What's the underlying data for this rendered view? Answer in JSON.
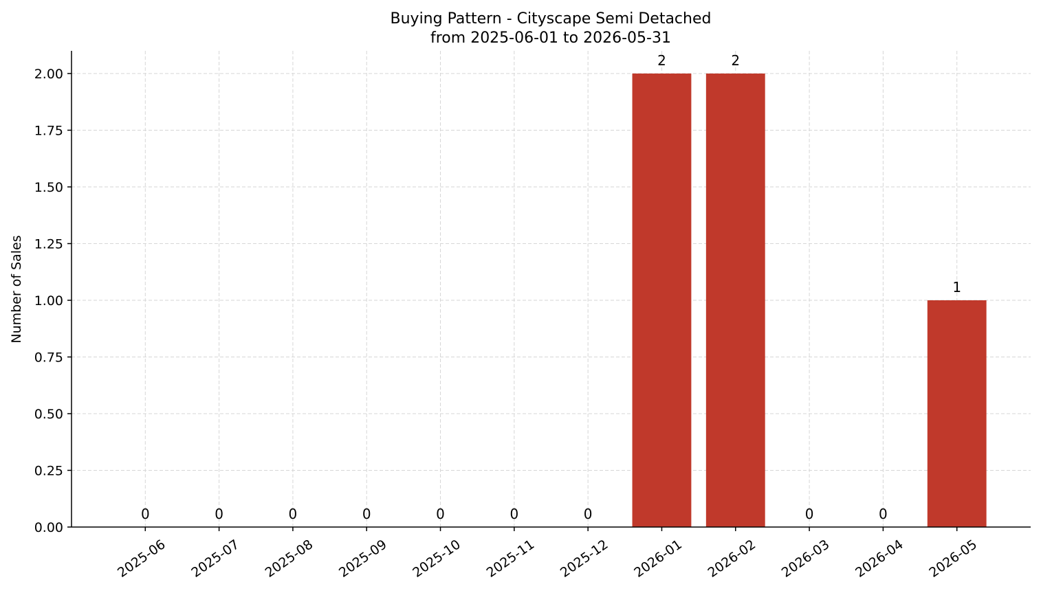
{
  "chart_data": {
    "type": "bar",
    "title": "Buying Pattern - Cityscape Semi Detached",
    "subtitle": "from 2025-06-01 to 2026-05-31",
    "y_label": "Number of Sales",
    "categories": [
      "2025-06",
      "2025-07",
      "2025-08",
      "2025-09",
      "2025-10",
      "2025-11",
      "2025-12",
      "2026-01",
      "2026-02",
      "2026-03",
      "2026-04",
      "2026-05"
    ],
    "values": [
      0,
      0,
      0,
      0,
      0,
      0,
      0,
      2,
      2,
      0,
      0,
      1
    ],
    "color": "#c0392b",
    "ylim": [
      0,
      2.1
    ],
    "yticks": [
      {
        "value": 0,
        "label": "0.00"
      },
      {
        "value": 0.25,
        "label": "0.25"
      },
      {
        "value": 0.5,
        "label": "0.50"
      },
      {
        "value": 0.75,
        "label": "0.75"
      },
      {
        "value": 1,
        "label": "1.00"
      },
      {
        "value": 1.25,
        "label": "1.25"
      },
      {
        "value": 1.5,
        "label": "1.50"
      },
      {
        "value": 1.75,
        "label": "1.75"
      },
      {
        "value": 2,
        "label": "2.00"
      }
    ],
    "grid": true
  }
}
